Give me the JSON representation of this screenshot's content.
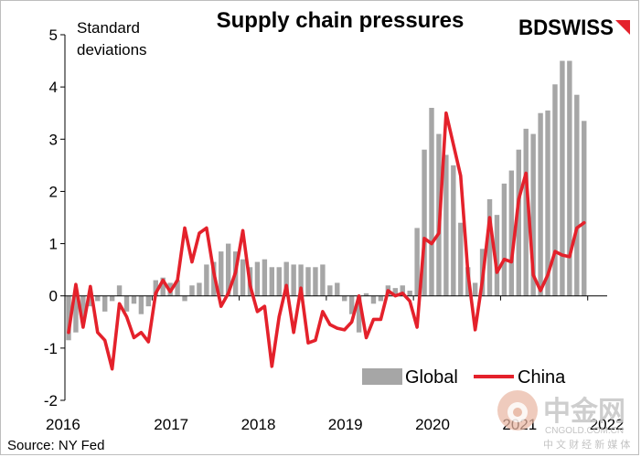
{
  "colors": {
    "global_bar": "#a6a6a6",
    "china_line": "#e4212b",
    "brand_red": "#e4212b",
    "axis": "#000000",
    "watermark_gray": "#bfbfbf",
    "watermark_red": "#e8b7a3"
  },
  "brand": {
    "text": "BDSWISS",
    "icon": "diagonal-arrow-icon"
  },
  "source": "Source:  NY Fed",
  "watermark": {
    "cn_title": "中金网",
    "en": "CNGOLD.COM.CN",
    "cn_sub": "中 文 财 经 新 媒 体",
    "icon": "gold-drop-icon"
  },
  "chart_data": {
    "type": "bar",
    "title": "Supply chain pressures",
    "ylabel": [
      "Standard",
      "deviations"
    ],
    "xlabel": "",
    "ylim": [
      -2,
      5
    ],
    "yticks": [
      5,
      4,
      3,
      2,
      1,
      0,
      -1,
      -2
    ],
    "xticks": [
      {
        "label": "2016",
        "index": 0
      },
      {
        "label": "2017",
        "index": 12
      },
      {
        "label": "2018",
        "index": 24
      },
      {
        "label": "2019",
        "index": 36
      },
      {
        "label": "2020",
        "index": 48
      },
      {
        "label": "2021",
        "index": 60
      },
      {
        "label": "2022",
        "index": 72
      }
    ],
    "legend": {
      "position": "bottom-right",
      "entries": [
        "Global",
        "China"
      ]
    },
    "series": [
      {
        "name": "Global",
        "kind": "bar",
        "values": [
          -0.85,
          -0.7,
          -0.5,
          -0.2,
          -0.1,
          -0.3,
          -0.1,
          0.2,
          -0.3,
          -0.15,
          -0.35,
          -0.2,
          0.3,
          0.35,
          0.25,
          0.3,
          -0.1,
          0.2,
          0.25,
          0.6,
          0.65,
          0.85,
          1.0,
          0.85,
          0.7,
          0.55,
          0.65,
          0.7,
          0.55,
          0.55,
          0.65,
          0.6,
          0.6,
          0.55,
          0.55,
          0.6,
          0.2,
          0.25,
          -0.1,
          -0.35,
          -0.7,
          0.05,
          -0.15,
          -0.1,
          0.2,
          0.15,
          0.2,
          0.1,
          1.3,
          2.8,
          3.6,
          3.1,
          2.7,
          2.5,
          1.4,
          0.55,
          0.25,
          0.9,
          1.85,
          1.55,
          2.15,
          2.4,
          2.8,
          3.2,
          3.1,
          3.5,
          3.55,
          4.05,
          4.5,
          4.5,
          3.85,
          3.35
        ]
      },
      {
        "name": "China",
        "kind": "line",
        "values": [
          -0.7,
          0.22,
          -0.6,
          0.18,
          -0.7,
          -0.85,
          -1.4,
          -0.15,
          -0.4,
          -0.8,
          -0.7,
          -0.88,
          0.05,
          0.3,
          0.08,
          0.3,
          1.3,
          0.65,
          1.2,
          1.3,
          0.45,
          -0.2,
          0.05,
          0.45,
          1.25,
          0.2,
          -0.3,
          -0.2,
          -1.35,
          -0.4,
          0.2,
          -0.7,
          0.15,
          -0.9,
          -0.85,
          -0.3,
          -0.55,
          -0.62,
          -0.65,
          -0.5,
          0.0,
          -0.8,
          -0.45,
          -0.45,
          0.1,
          0.0,
          0.05,
          -0.1,
          -0.6,
          1.1,
          1.0,
          1.2,
          3.5,
          2.9,
          2.3,
          0.45,
          -0.65,
          0.3,
          1.5,
          0.45,
          0.7,
          0.65,
          1.85,
          2.35,
          0.4,
          0.1,
          0.4,
          0.85,
          0.78,
          0.75,
          1.3,
          1.4
        ]
      }
    ]
  }
}
